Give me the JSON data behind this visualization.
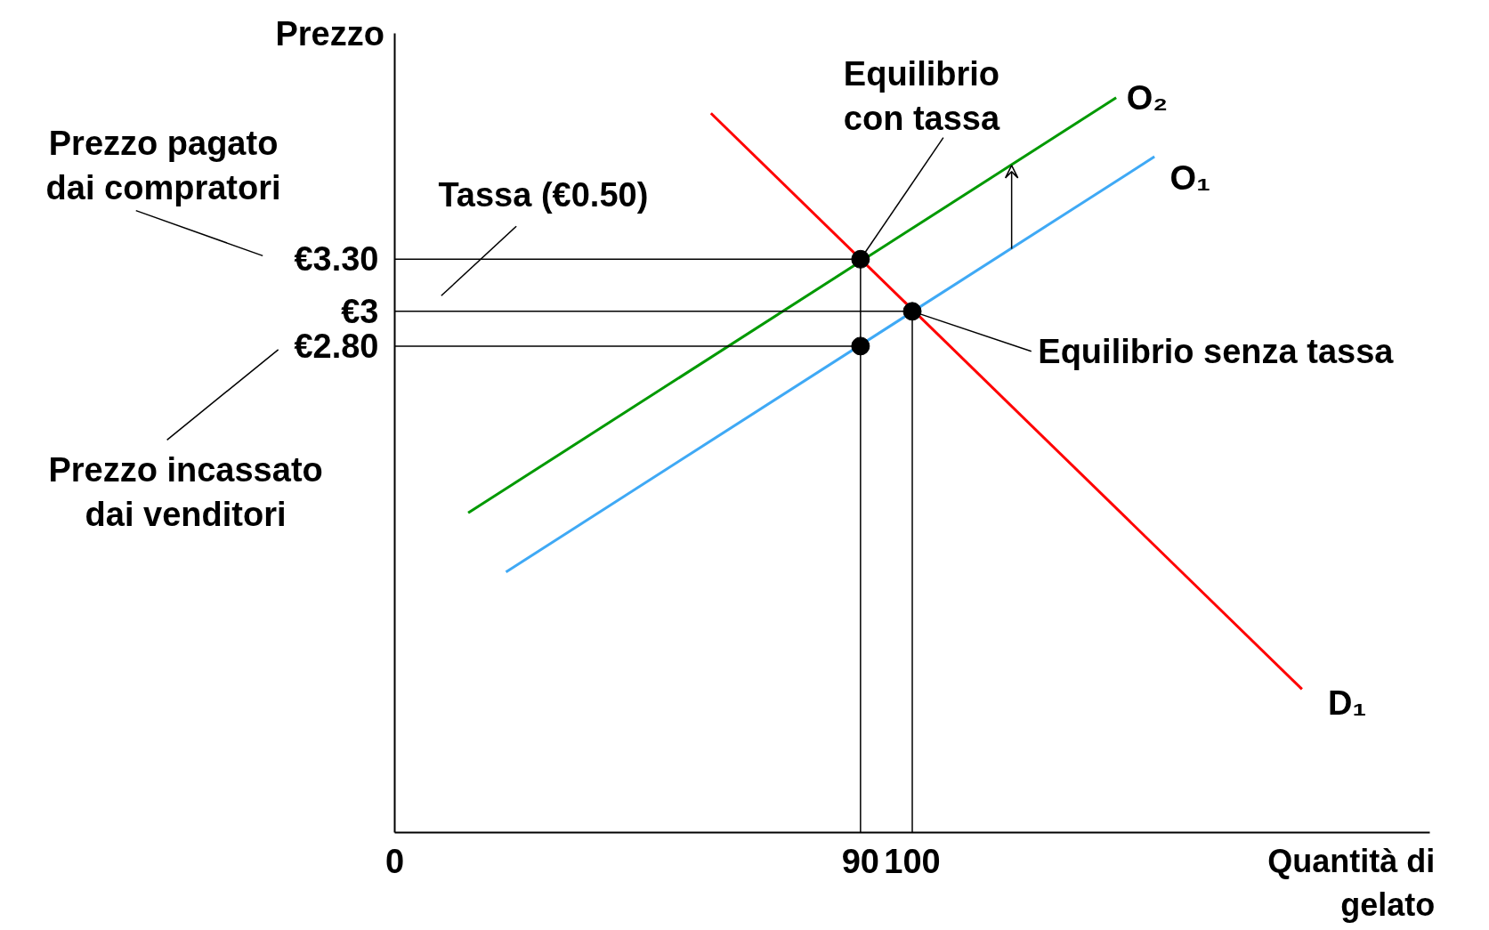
{
  "chart_data": {
    "type": "line",
    "xlabel": "Quantità di\ngelato",
    "ylabel": "Prezzo",
    "xlim": [
      0,
      200
    ],
    "ylim": [
      0,
      4.6
    ],
    "xticks": [
      0,
      90,
      100
    ],
    "yticks": [
      {
        "value": 2.8,
        "label": "€2.80"
      },
      {
        "value": 3,
        "label": "€3"
      },
      {
        "value": 3.3,
        "label": "€3.30"
      }
    ],
    "grid": false,
    "tick_labels": "xy",
    "series": [
      {
        "name": "D₁",
        "color": "#ff0000",
        "x": [
          61.1,
          175.3
        ],
        "values": [
          4.14,
          0.825
        ]
      },
      {
        "name": "O₂",
        "color": "#009900",
        "x": [
          14.2,
          139.4
        ],
        "values": [
          1.84,
          4.23
        ]
      },
      {
        "name": "O₁",
        "color": "#3fa9f5",
        "x": [
          21.5,
          146.8
        ],
        "values": [
          1.5,
          3.89
        ]
      },
      {
        "color": "#000000",
        "x": [
          0,
          90,
          90
        ],
        "values": [
          3.3,
          3.3,
          0
        ]
      },
      {
        "color": "#000000",
        "x": [
          0,
          100,
          100
        ],
        "values": [
          3,
          3,
          0
        ]
      },
      {
        "color": "#000000",
        "x": [
          0,
          90
        ],
        "values": [
          2.8,
          2.8
        ]
      },
      {
        "type": "scatter",
        "marker": "circle",
        "color": "#000000",
        "x": [
          90,
          100,
          90
        ],
        "values": [
          3.3,
          3,
          2.8
        ]
      }
    ],
    "annotations": [
      {
        "text": "Equilibrio\ncon tassa",
        "x": 90,
        "y": 3.3
      },
      {
        "text": "Equilibrio senza tassa",
        "x": 100,
        "y": 3
      },
      "Tassa (€0.50)",
      "Prezzo pagato\ndai compratori",
      "Prezzo incassato\ndai venditori"
    ]
  }
}
